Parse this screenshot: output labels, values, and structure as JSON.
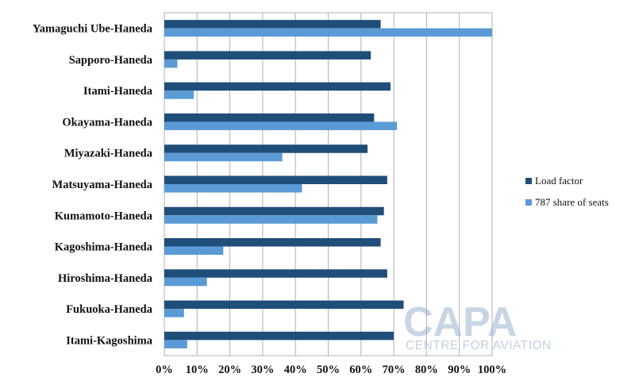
{
  "chart_data": {
    "type": "bar",
    "orientation": "horizontal",
    "categories": [
      "Yamaguchi Ube-Haneda",
      "Sapporo-Haneda",
      "Itami-Haneda",
      "Okayama-Haneda",
      "Miyazaki-Haneda",
      "Matsuyama-Haneda",
      "Kumamoto-Haneda",
      "Kagoshima-Haneda",
      "Hiroshima-Haneda",
      "Fukuoka-Haneda",
      "Itami-Kagoshima"
    ],
    "series": [
      {
        "name": "Load factor",
        "color": "#1f4e79",
        "values": [
          66,
          63,
          69,
          64,
          62,
          68,
          67,
          66,
          68,
          73,
          70
        ]
      },
      {
        "name": "787 share of seats",
        "color": "#5b9bd5",
        "values": [
          100,
          4,
          9,
          71,
          36,
          42,
          65,
          18,
          13,
          6,
          7
        ]
      }
    ],
    "xlim": [
      0,
      100
    ],
    "xticks": [
      "0%",
      "10%",
      "20%",
      "30%",
      "40%",
      "50%",
      "60%",
      "70%",
      "80%",
      "90%",
      "100%"
    ],
    "grid": true,
    "legend_position": "right"
  },
  "watermark": {
    "main": "CAPA",
    "sub": "CENTRE FOR AVIATION"
  }
}
